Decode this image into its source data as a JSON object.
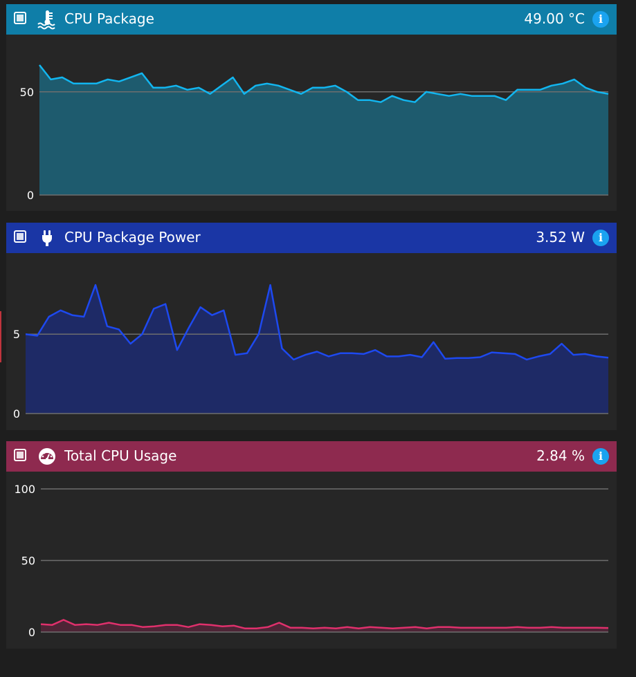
{
  "panels": [
    {
      "id": "temp",
      "title": "CPU Package",
      "value": "49.00 °C",
      "icon": "thermometer-liquid-icon",
      "header_color": "#0f7ea8",
      "line_color": "#12b6f0",
      "fill_color": "#1e5b6e",
      "chart_data": {
        "type": "area",
        "ylim": [
          0,
          65
        ],
        "yticks": [
          0,
          50
        ],
        "values": [
          63,
          56,
          57,
          54,
          54,
          54,
          56,
          55,
          57,
          59,
          52,
          52,
          53,
          51,
          52,
          49,
          53,
          57,
          49,
          53,
          54,
          53,
          51,
          49,
          52,
          52,
          53,
          50,
          46,
          46,
          45,
          48,
          46,
          45,
          50,
          49,
          48,
          49,
          48,
          48,
          48,
          46,
          51,
          51,
          51,
          53,
          54,
          56,
          52,
          50,
          49
        ]
      }
    },
    {
      "id": "power",
      "title": "CPU Package Power",
      "value": "3.52 W",
      "icon": "power-plug-icon",
      "header_color": "#1a36a5",
      "line_color": "#1d49f0",
      "fill_color": "#1e2a66",
      "chart_data": {
        "type": "area",
        "ylim": [
          0,
          8.8
        ],
        "yticks": [
          0,
          5
        ],
        "values": [
          5.0,
          4.9,
          6.1,
          6.5,
          6.2,
          6.1,
          8.1,
          5.5,
          5.3,
          4.4,
          5.0,
          6.6,
          6.9,
          4.0,
          5.4,
          6.7,
          6.2,
          6.5,
          3.7,
          3.8,
          5.0,
          8.1,
          4.1,
          3.4,
          3.7,
          3.9,
          3.6,
          3.8,
          3.8,
          3.75,
          4.0,
          3.6,
          3.6,
          3.7,
          3.55,
          4.5,
          3.45,
          3.5,
          3.5,
          3.55,
          3.85,
          3.8,
          3.75,
          3.4,
          3.6,
          3.75,
          4.4,
          3.7,
          3.75,
          3.6,
          3.52
        ]
      }
    },
    {
      "id": "usage",
      "title": "Total CPU Usage",
      "value": "2.84 %",
      "icon": "speedometer-icon",
      "header_color": "#8e2a4f",
      "line_color": "#e0306c",
      "fill_color": "#4d2536",
      "chart_data": {
        "type": "area",
        "ylim": [
          0,
          100
        ],
        "yticks": [
          0,
          50,
          100
        ],
        "values": [
          5.5,
          5,
          8.5,
          5,
          5.5,
          5,
          6.5,
          5,
          5,
          3.5,
          4,
          5,
          5,
          3.5,
          5.5,
          5,
          4,
          4.5,
          2.5,
          2.5,
          3.5,
          6.5,
          3,
          3,
          2.5,
          3,
          2.5,
          3.5,
          2.5,
          3.5,
          3,
          2.5,
          3,
          3.5,
          2.5,
          3.5,
          3.5,
          3,
          3,
          3,
          3,
          3,
          3.5,
          3,
          3,
          3.5,
          3,
          3,
          3,
          3,
          2.84
        ]
      }
    }
  ]
}
